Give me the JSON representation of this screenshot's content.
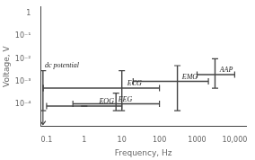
{
  "chart_data": {
    "type": "errorbar",
    "xlabel": "Frequency, Hz",
    "ylabel": "Voltage, V",
    "log": true,
    "grid": false,
    "color": "#444444",
    "xlim": [
      0.07,
      20000
    ],
    "ylim": [
      1e-05,
      2
    ],
    "xticks": [
      0.1,
      1,
      10,
      100,
      1000,
      {
        "value": 10000,
        "label": "10,000"
      }
    ],
    "yticks": [
      {
        "value": 0.0001,
        "label": "10⁻⁴"
      },
      {
        "value": 0.001,
        "label": "10⁻³"
      },
      {
        "value": 0.01,
        "label": "10⁻²"
      },
      {
        "value": 0.1,
        "label": "10⁻¹"
      },
      1
    ],
    "series": [
      {
        "name": "dc potential",
        "x": 0.08,
        "x_lo": 0.08,
        "x_hi": 0.08,
        "y": 0.0005,
        "y_lo": 5e-05,
        "y_hi": 0.003,
        "arrow_to": 1.2e-05,
        "label_at": [
          0.09,
          0.0035
        ]
      },
      {
        "name": "EOG",
        "x": 1.0,
        "x_lo": 0.1,
        "x_hi": 10,
        "y": 8e-05,
        "y_lo": 8e-05,
        "y_hi": 8e-05,
        "label_at": [
          2.5,
          8.5e-05
        ]
      },
      {
        "name": "EEG",
        "x": 7,
        "x_lo": 0.5,
        "x_hi": 100,
        "y": 0.0001,
        "y_lo": 5e-05,
        "y_hi": 0.0003,
        "label_at": [
          8,
          0.00011
        ]
      },
      {
        "name": "ECG",
        "x": 10,
        "x_lo": 0.08,
        "x_hi": 100,
        "y": 0.0005,
        "y_lo": 5e-05,
        "y_hi": 0.003,
        "label_at": [
          14,
          0.00055
        ]
      },
      {
        "name": "EMG",
        "x": 300,
        "x_lo": 20,
        "x_hi": 2000,
        "y": 0.001,
        "y_lo": 5e-05,
        "y_hi": 0.005,
        "label_at": [
          400,
          0.0011
        ]
      },
      {
        "name": "AAP",
        "x": 3000,
        "x_lo": 1000,
        "x_hi": 10000,
        "y": 0.002,
        "y_lo": 0.0005,
        "y_hi": 0.01,
        "label_at": [
          4000,
          0.0022
        ]
      }
    ]
  }
}
